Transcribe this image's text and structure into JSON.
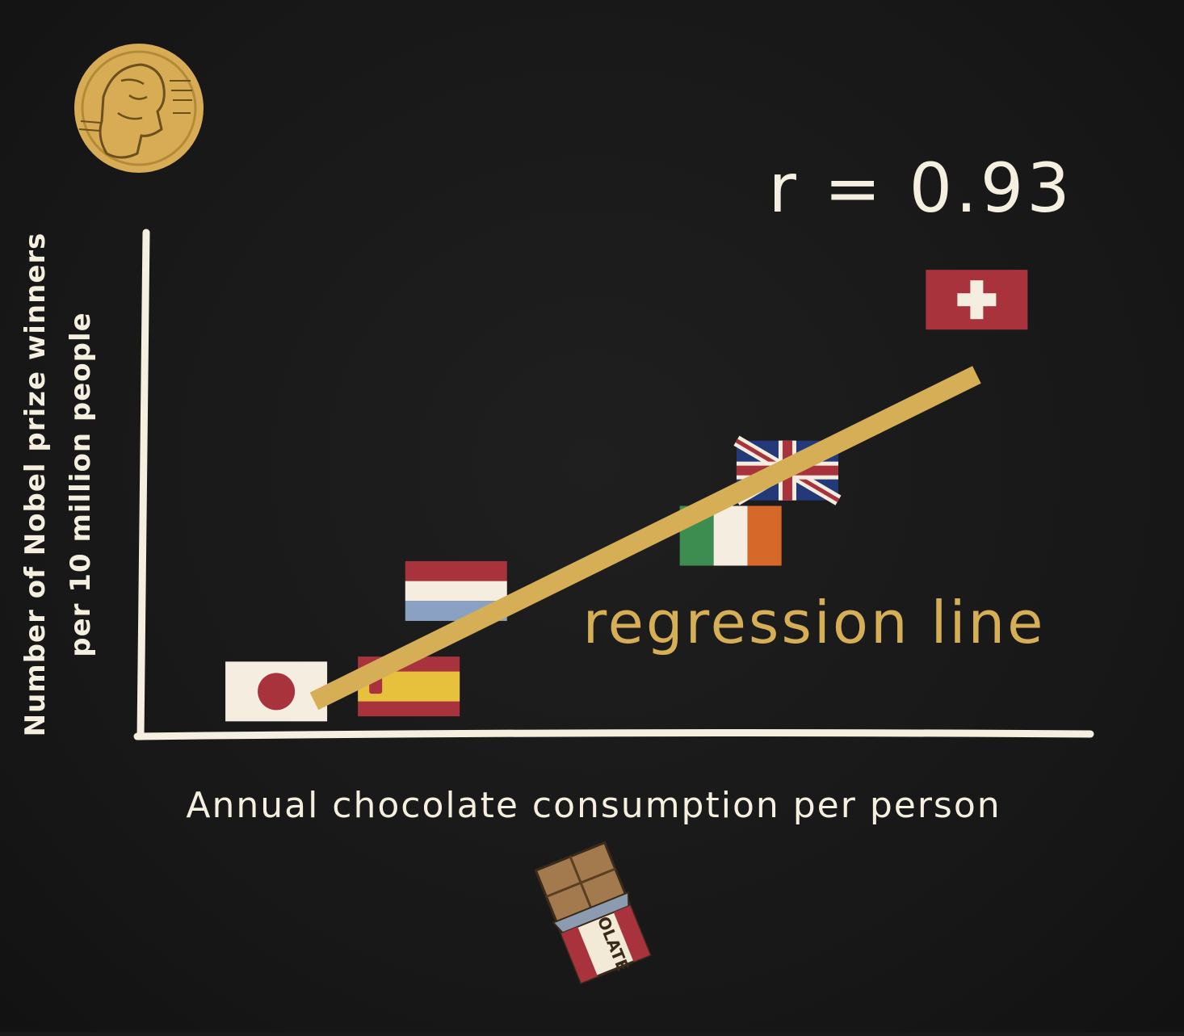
{
  "chart_data": {
    "type": "scatter",
    "title": "",
    "xlabel": "Annual chocolate consumption per person",
    "ylabel_lines": [
      "Number of Nobel prize winners",
      "per 10 million people"
    ],
    "correlation_label": "r = 0.93",
    "regression_label": "regression line",
    "chocolate_label": "OLATE",
    "x_ticks_shown": false,
    "y_ticks_shown": false,
    "grid": false,
    "xlim": [
      0,
      10
    ],
    "ylim": [
      0,
      10
    ],
    "points": [
      {
        "name": "japan-flag",
        "x": 1.4,
        "y": 0.3
      },
      {
        "name": "spain-flag",
        "x": 2.8,
        "y": 0.4
      },
      {
        "name": "netherlands-flag",
        "x": 3.3,
        "y": 2.3
      },
      {
        "name": "ireland-flag",
        "x": 6.2,
        "y": 3.4
      },
      {
        "name": "uk-flag",
        "x": 6.8,
        "y": 4.7
      },
      {
        "name": "switzerland-flag",
        "x": 8.8,
        "y": 8.1
      }
    ],
    "regression": {
      "x0": 1.8,
      "y0": 0.3,
      "x1": 8.8,
      "y1": 6.8
    },
    "colors": {
      "background": "#191919",
      "chalk": "#f4efdf",
      "regression": "#d5ae55",
      "medal": "#d8ac55",
      "flag_red": "#a8333d",
      "flag_blue": "#8aa1c4",
      "flag_yellow": "#e8c13c",
      "flag_green": "#3e8d50",
      "flag_orange": "#d6692a",
      "flag_navy": "#243a78"
    }
  }
}
